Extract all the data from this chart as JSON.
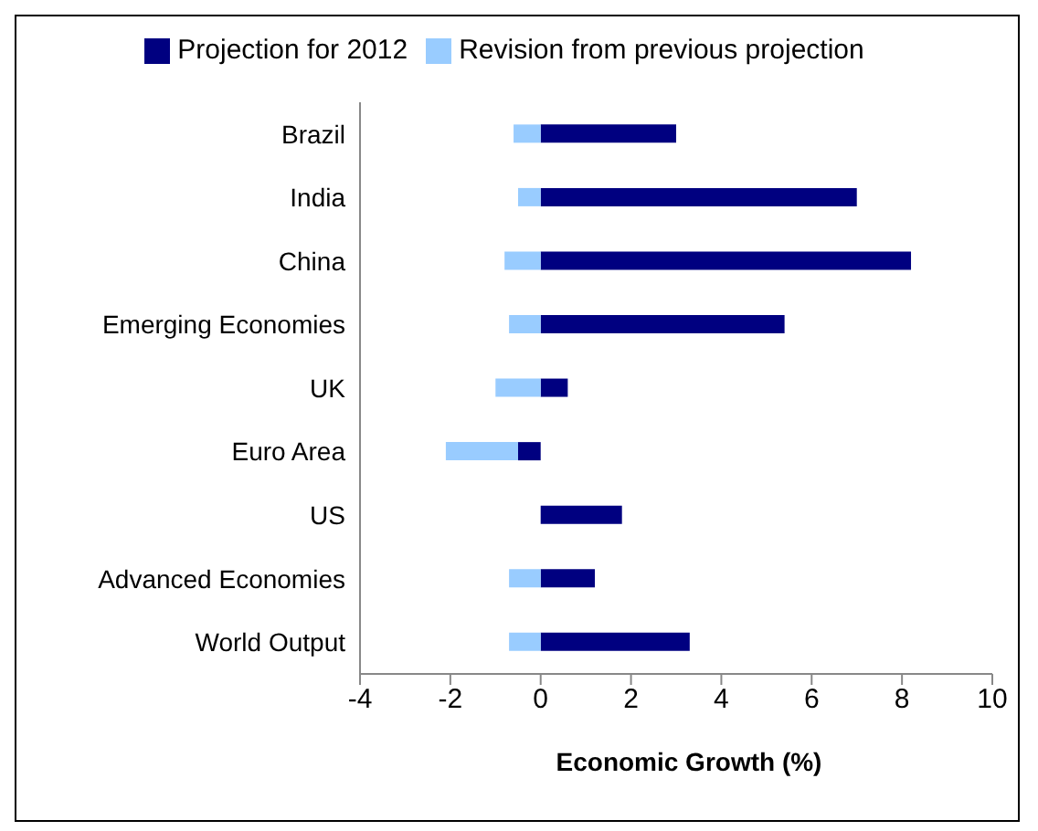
{
  "chart_data": {
    "type": "bar",
    "orientation": "horizontal",
    "stacked": true,
    "xlabel": "Economic Growth (%)",
    "categories": [
      "Brazil",
      "India",
      "China",
      "Emerging Economies",
      "UK",
      "Euro Area",
      "US",
      "Advanced Economies",
      "World Output"
    ],
    "series": [
      {
        "name": "Projection for 2012",
        "color": "#000080",
        "values": [
          3.0,
          7.0,
          8.2,
          5.4,
          0.6,
          -0.5,
          1.8,
          1.2,
          3.3
        ]
      },
      {
        "name": "Revision from previous projection",
        "color": "#99ccff",
        "values": [
          -0.6,
          -0.5,
          -0.8,
          -0.7,
          -1.0,
          -1.6,
          0,
          -0.7,
          -0.7
        ]
      }
    ],
    "xlim": [
      -4,
      10
    ],
    "xticks": [
      -4,
      -2,
      0,
      2,
      4,
      6,
      8,
      10
    ],
    "grid": false,
    "legend": "top"
  }
}
